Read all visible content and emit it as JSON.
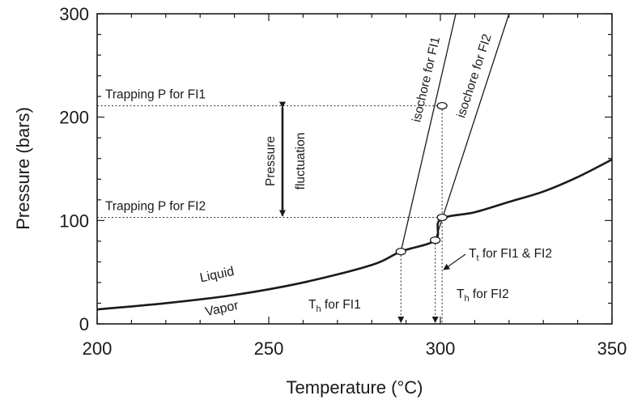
{
  "chart_data": {
    "type": "line",
    "title": "",
    "xlabel": "Temperature (°C)",
    "ylabel": "Pressure (bars)",
    "xlim": [
      200,
      350
    ],
    "ylim": [
      0,
      300
    ],
    "x_ticks": [
      200,
      250,
      300,
      350
    ],
    "y_ticks": [
      0,
      100,
      200,
      300
    ],
    "grid": false,
    "series": [
      {
        "name": "",
        "style": "solid-thick",
        "points": [
          [
            200,
            14
          ],
          [
            220,
            20
          ],
          [
            240,
            28
          ],
          [
            260,
            40
          ],
          [
            280,
            57
          ],
          [
            288.5,
            70
          ],
          [
            298.5,
            81
          ],
          [
            300,
            101
          ],
          [
            310,
            108
          ],
          [
            320,
            118
          ],
          [
            330,
            128
          ],
          [
            340,
            142
          ],
          [
            350,
            159
          ]
        ]
      },
      {
        "name": "isochore for FI1",
        "style": "solid-thin",
        "points": [
          [
            288.5,
            70
          ],
          [
            304.5,
            300
          ]
        ]
      },
      {
        "name": "isochore for FI2",
        "style": "solid-thin",
        "points": [
          [
            298.5,
            81
          ],
          [
            320,
            300
          ]
        ]
      }
    ],
    "reference_lines": [
      {
        "label": "Trapping P for FI1",
        "y": 211,
        "x_from": 200,
        "x_to": 300
      },
      {
        "label": "Trapping P for FI2",
        "y": 103,
        "x_from": 200,
        "x_to": 300
      }
    ],
    "markers": [
      {
        "x": 288.5,
        "y": 70
      },
      {
        "x": 298.5,
        "y": 81
      },
      {
        "x": 300.5,
        "y": 103
      },
      {
        "x": 300.5,
        "y": 211
      }
    ],
    "annotations": {
      "pressure_fluctuation": [
        "Pressure",
        "fluctuation"
      ],
      "liquid": "Liquid",
      "vapor": "Vapor",
      "th_fi1": {
        "main": "T",
        "sub": "h",
        "rest": " for FI1",
        "x": 288.5
      },
      "th_fi2": {
        "main": "T",
        "sub": "h",
        "rest": " for FI2",
        "x": 298.5
      },
      "tt_fi1_fi2": {
        "main": "T",
        "sub": "t",
        "rest": " for FI1 & FI2",
        "x": 300.5
      }
    }
  }
}
